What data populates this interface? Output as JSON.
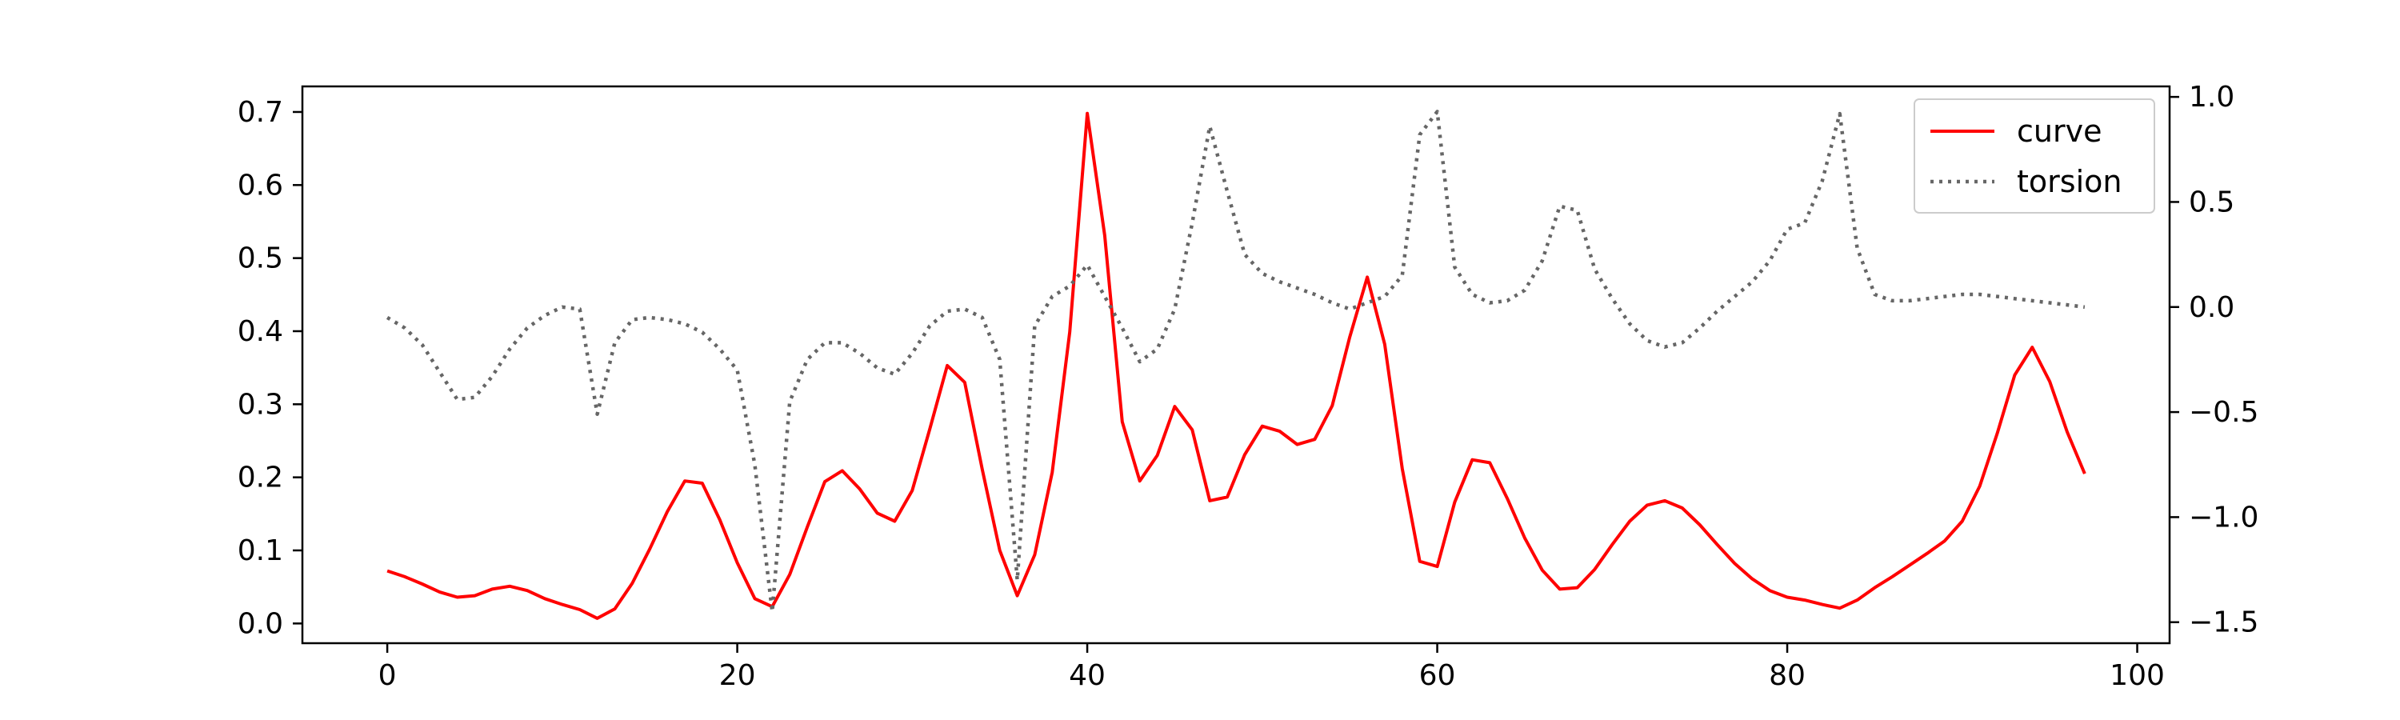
{
  "chart_data": {
    "type": "line",
    "title": "",
    "xlabel": "",
    "ylabel": "",
    "y2label": "",
    "xlim": [
      -4.85,
      101.85
    ],
    "ylim": [
      -0.027,
      0.735
    ],
    "y2lim": [
      -1.6,
      1.05
    ],
    "x_ticks": [
      0,
      20,
      40,
      60,
      80,
      100
    ],
    "y_ticks": [
      0.0,
      0.1,
      0.2,
      0.3,
      0.4,
      0.5,
      0.6,
      0.7
    ],
    "y2_ticks": [
      1.0,
      0.5,
      0.0,
      -0.5,
      -1.0,
      -1.5
    ],
    "x_tick_labels": [
      "0",
      "20",
      "40",
      "60",
      "80",
      "100"
    ],
    "y_tick_labels": [
      "0.0",
      "0.1",
      "0.2",
      "0.3",
      "0.4",
      "0.5",
      "0.6",
      "0.7"
    ],
    "y2_tick_labels": [
      "1.0",
      "0.5",
      "0.0",
      "−0.5",
      "−1.0",
      "−1.5"
    ],
    "legend_position": "top-right",
    "grid": false,
    "x": [
      0,
      1,
      2,
      3,
      4,
      5,
      6,
      7,
      8,
      9,
      10,
      11,
      12,
      13,
      14,
      15,
      16,
      17,
      18,
      19,
      20,
      21,
      22,
      23,
      24,
      25,
      26,
      27,
      28,
      29,
      30,
      31,
      32,
      33,
      34,
      35,
      36,
      37,
      38,
      39,
      40,
      41,
      42,
      43,
      44,
      45,
      46,
      47,
      48,
      49,
      50,
      51,
      52,
      53,
      54,
      55,
      56,
      57,
      58,
      59,
      60,
      61,
      62,
      63,
      64,
      65,
      66,
      67,
      68,
      69,
      70,
      71,
      72,
      73,
      74,
      75,
      76,
      77,
      78,
      79,
      80,
      81,
      82,
      83,
      84,
      85,
      86,
      87,
      88,
      89,
      90,
      91,
      92,
      93,
      94,
      95,
      96,
      97
    ],
    "series": [
      {
        "name": "curve",
        "axis": "left",
        "color": "#ff0000",
        "style": "solid",
        "values": [
          0.072,
          0.064,
          0.054,
          0.043,
          0.036,
          0.038,
          0.047,
          0.051,
          0.045,
          0.034,
          0.026,
          0.019,
          0.007,
          0.02,
          0.055,
          0.102,
          0.153,
          0.195,
          0.192,
          0.142,
          0.083,
          0.034,
          0.023,
          0.067,
          0.132,
          0.194,
          0.209,
          0.184,
          0.151,
          0.14,
          0.182,
          0.266,
          0.353,
          0.33,
          0.211,
          0.1,
          0.038,
          0.094,
          0.207,
          0.399,
          0.698,
          0.531,
          0.276,
          0.195,
          0.23,
          0.297,
          0.265,
          0.168,
          0.173,
          0.231,
          0.27,
          0.263,
          0.245,
          0.252,
          0.298,
          0.392,
          0.474,
          0.382,
          0.212,
          0.085,
          0.078,
          0.166,
          0.224,
          0.22,
          0.171,
          0.117,
          0.073,
          0.047,
          0.049,
          0.074,
          0.108,
          0.14,
          0.162,
          0.168,
          0.158,
          0.135,
          0.108,
          0.082,
          0.061,
          0.045,
          0.036,
          0.032,
          0.026,
          0.021,
          0.032,
          0.049,
          0.064,
          0.08,
          0.096,
          0.113,
          0.14,
          0.188,
          0.26,
          0.34,
          0.378,
          0.331,
          0.262,
          0.205
        ]
      },
      {
        "name": "torsion",
        "axis": "right",
        "color": "#666666",
        "style": "dotted",
        "values": [
          -0.05,
          -0.1,
          -0.18,
          -0.31,
          -0.44,
          -0.43,
          -0.33,
          -0.2,
          -0.1,
          -0.04,
          0.0,
          -0.01,
          -0.51,
          -0.17,
          -0.06,
          -0.05,
          -0.06,
          -0.08,
          -0.12,
          -0.2,
          -0.3,
          -0.75,
          -1.45,
          -0.45,
          -0.25,
          -0.17,
          -0.17,
          -0.22,
          -0.29,
          -0.32,
          -0.22,
          -0.09,
          -0.02,
          -0.01,
          -0.05,
          -0.25,
          -1.3,
          -0.09,
          0.05,
          0.1,
          0.2,
          0.05,
          -0.1,
          -0.26,
          -0.2,
          -0.01,
          0.4,
          0.86,
          0.55,
          0.25,
          0.16,
          0.12,
          0.09,
          0.06,
          0.02,
          -0.01,
          0.02,
          0.05,
          0.15,
          0.82,
          0.93,
          0.19,
          0.06,
          0.02,
          0.03,
          0.08,
          0.22,
          0.48,
          0.46,
          0.18,
          0.04,
          -0.08,
          -0.16,
          -0.19,
          -0.17,
          -0.1,
          -0.02,
          0.05,
          0.12,
          0.22,
          0.37,
          0.4,
          0.6,
          0.92,
          0.28,
          0.06,
          0.03,
          0.03,
          0.04,
          0.05,
          0.06,
          0.06,
          0.05,
          0.04,
          0.03,
          0.02,
          0.01,
          0.0
        ]
      }
    ]
  }
}
